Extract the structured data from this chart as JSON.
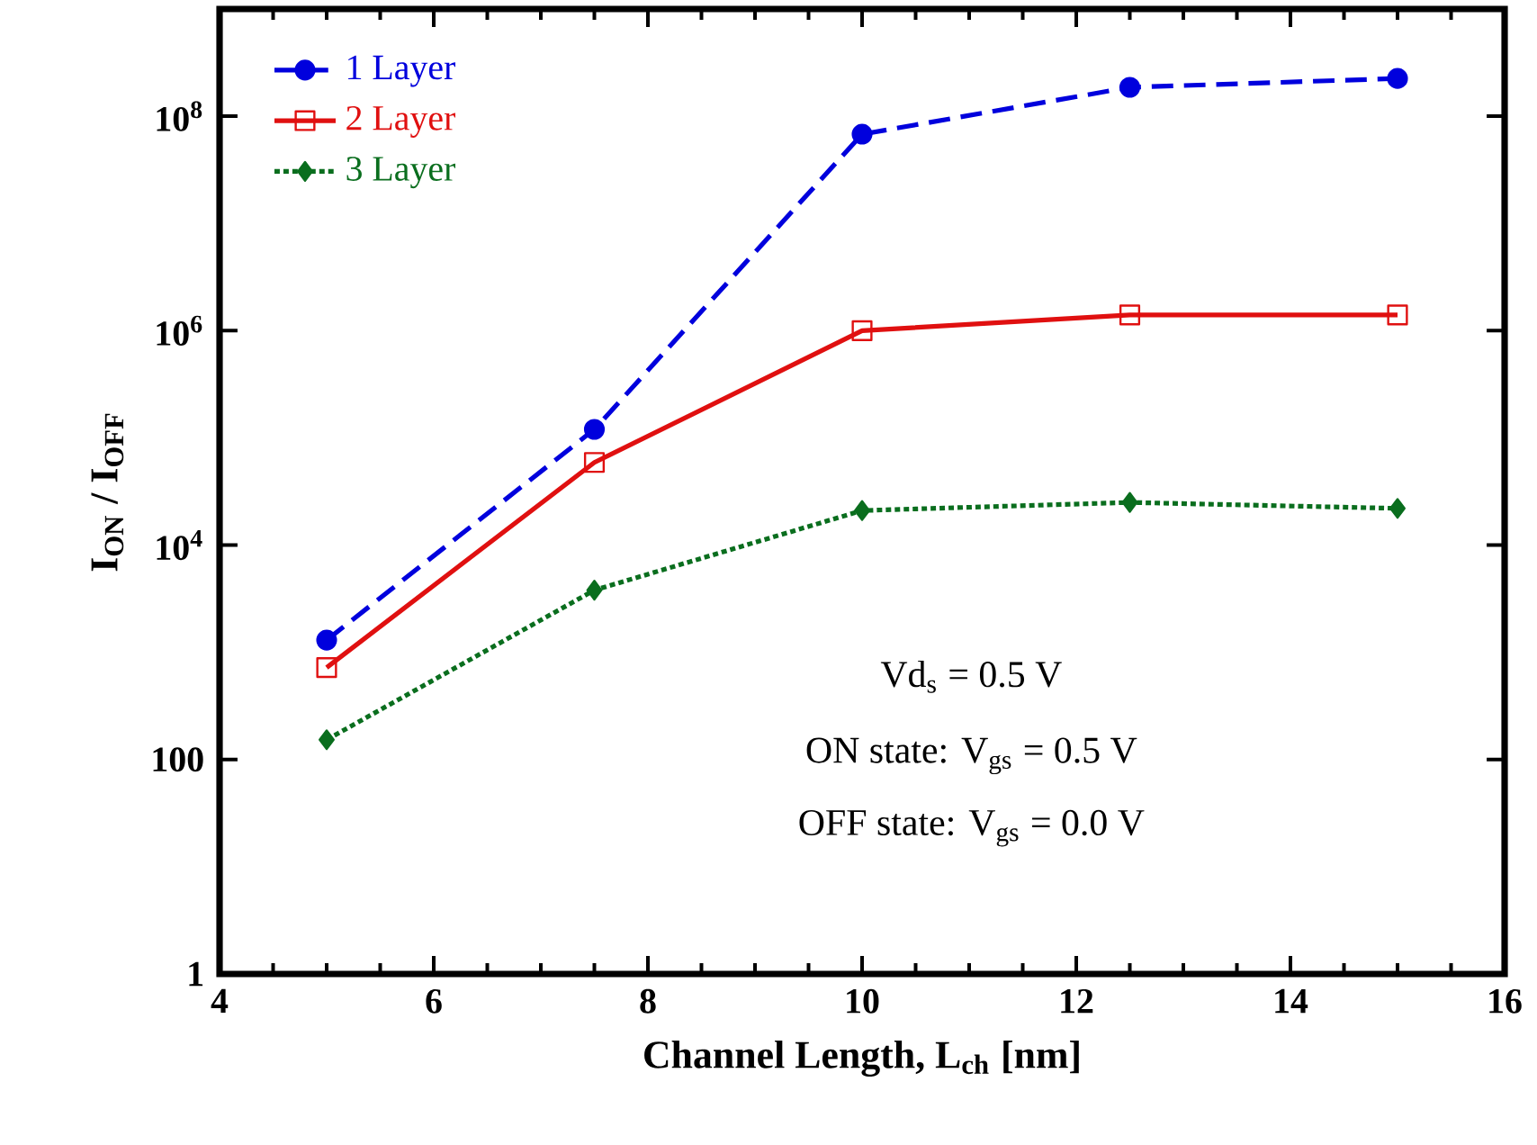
{
  "chart_data": {
    "type": "line",
    "xlabel": "Channel Length, L$_{ch}$ [nm]",
    "ylabel": "I$_{ON}$ / I$_{OFF}$",
    "x": [
      5,
      7.5,
      10,
      12.5,
      15
    ],
    "series": [
      {
        "name": "1 Layer",
        "color": "#0000dd",
        "marker": "circle",
        "line_style": "dashed",
        "values": [
          1300,
          120000,
          68000000,
          186000000,
          225000000
        ]
      },
      {
        "name": "2 Layer",
        "color": "#e01010",
        "marker": "square",
        "line_style": "solid",
        "values": [
          720,
          59000,
          1000000,
          1400000,
          1400000
        ]
      },
      {
        "name": "3 Layer",
        "color": "#0a6e1e",
        "marker": "diamond",
        "line_style": "dotted",
        "values": [
          153,
          3800,
          21000,
          25000,
          22000
        ]
      }
    ],
    "log": "y",
    "legend": "top left",
    "xlim": [
      4,
      16
    ],
    "ylim": [
      1,
      1000000000
    ],
    "xticks": [
      4,
      6,
      8,
      10,
      12,
      14,
      16
    ],
    "yticks": [
      1,
      100,
      {
        "value": 10000,
        "label": "10$^{4}$"
      },
      {
        "value": 1000000,
        "label": "10$^{6}$"
      },
      {
        "value": 100000000,
        "label": "10$^{8}$"
      }
    ],
    "annotations": [
      "Vd$_{s}$ = 0.5 V",
      "ON state: V$_{gs}$ = 0.5 V",
      "OFF state: V$_{gs}$ = 0.0 V"
    ]
  }
}
